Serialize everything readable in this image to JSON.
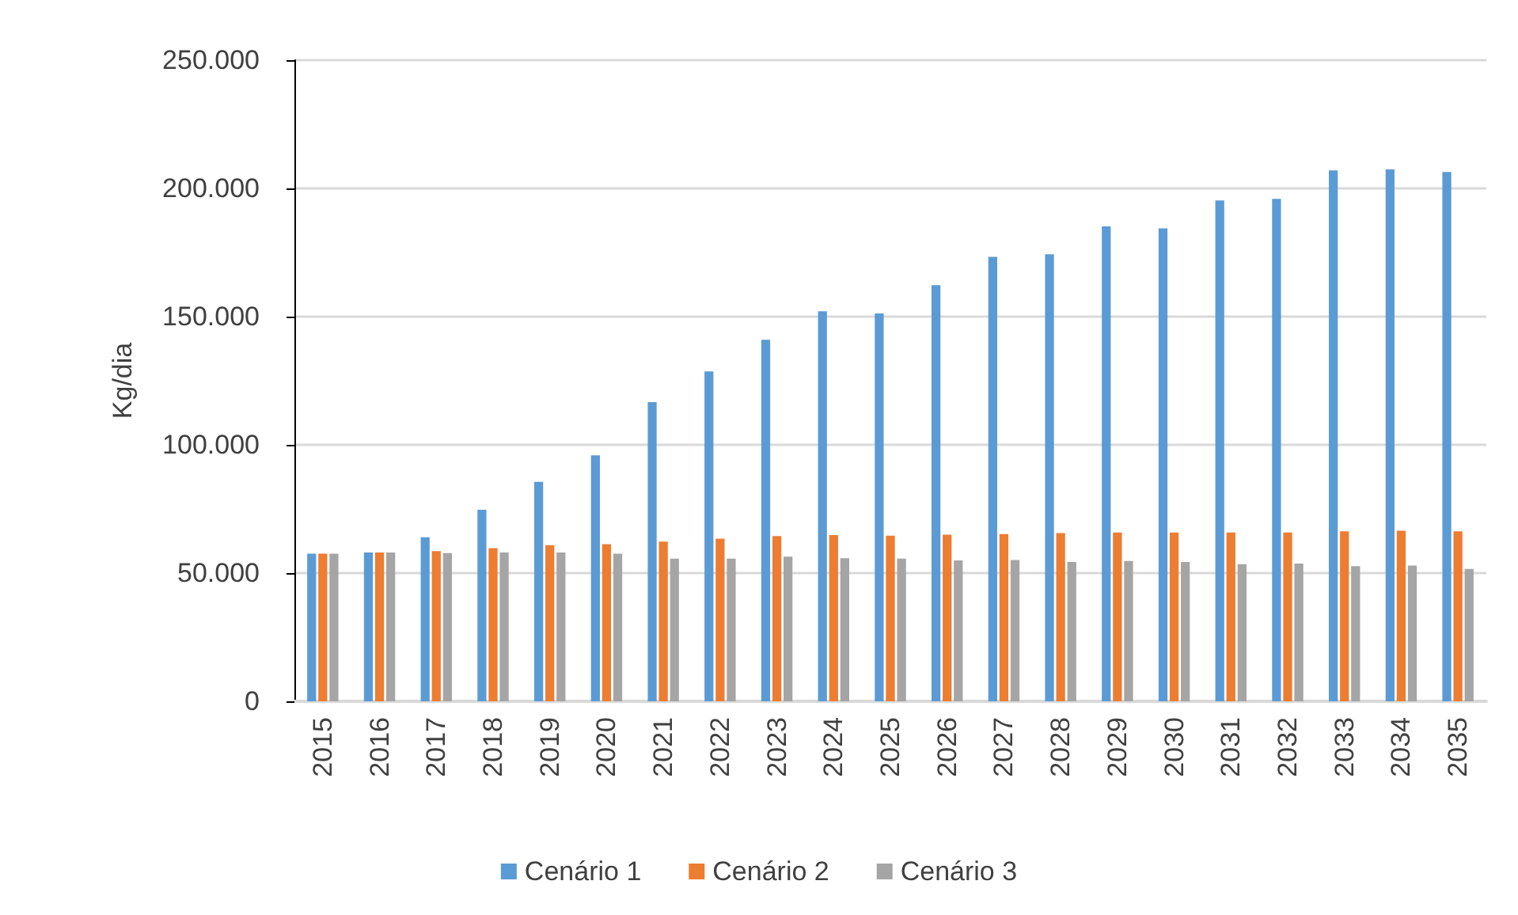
{
  "chart_data": {
    "type": "bar",
    "ylabel": "Kg/dia",
    "categories": [
      "2015",
      "2016",
      "2017",
      "2018",
      "2019",
      "2020",
      "2021",
      "2022",
      "2023",
      "2024",
      "2025",
      "2026",
      "2027",
      "2028",
      "2029",
      "2030",
      "2031",
      "2032",
      "2033",
      "2034",
      "2035"
    ],
    "series": [
      {
        "name": "Cenário 1",
        "color": "#5b9bd5",
        "values": [
          57600,
          58000,
          64000,
          74700,
          85600,
          95900,
          116700,
          128600,
          141000,
          152100,
          151200,
          162300,
          173300,
          174300,
          185200,
          184400,
          195300,
          195900,
          207000,
          207400,
          206400
        ]
      },
      {
        "name": "Cenário 2",
        "color": "#ed7d31",
        "values": [
          57600,
          58000,
          58600,
          59700,
          60900,
          61300,
          62300,
          63400,
          64400,
          64800,
          64600,
          65000,
          65200,
          65600,
          65800,
          65800,
          65800,
          65800,
          66300,
          66500,
          66300
        ]
      },
      {
        "name": "Cenário 3",
        "color": "#a5a5a5",
        "values": [
          57600,
          58000,
          57800,
          58000,
          58000,
          57600,
          55600,
          55600,
          56400,
          55800,
          55600,
          54900,
          55100,
          54300,
          54700,
          54300,
          53500,
          53700,
          52700,
          52900,
          51600
        ]
      }
    ],
    "ylim": [
      0,
      250000
    ],
    "yticks": [
      0,
      {
        "value": 50000,
        "label": "50.000"
      },
      {
        "value": 100000,
        "label": "100.000"
      },
      {
        "value": 150000,
        "label": "150.000"
      },
      {
        "value": 200000,
        "label": "200.000"
      },
      {
        "value": 250000,
        "label": "250.000"
      }
    ],
    "grid": "y",
    "legend": "bottom"
  }
}
